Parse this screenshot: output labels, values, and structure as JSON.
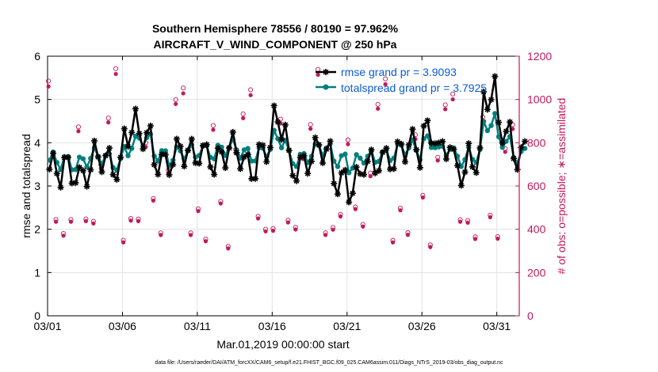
{
  "chart_data": {
    "type": "line",
    "title_line1": "Southern Hemisphere 78556 / 80190 = 97.962%",
    "title_line2": "AIRCRAFT_V_WIND_COMPONENT @ 250 hPa",
    "xlabel": "Mar.01,2019 00:00:00 start",
    "ylabel_left": "rmse and totalspread",
    "ylabel_right": "# of obs: o=possible; ∗=assimilated",
    "xlim": [
      0,
      31.5
    ],
    "ylim_left": [
      0,
      6
    ],
    "ylim_right": [
      0,
      1200
    ],
    "x_ticks": [
      {
        "x": 0,
        "label": "03/01"
      },
      {
        "x": 5,
        "label": "03/06"
      },
      {
        "x": 10,
        "label": "03/11"
      },
      {
        "x": 15,
        "label": "03/16"
      },
      {
        "x": 20,
        "label": "03/21"
      },
      {
        "x": 25,
        "label": "03/26"
      },
      {
        "x": 30,
        "label": "03/31"
      }
    ],
    "y_ticks_left": [
      "0",
      "1",
      "2",
      "3",
      "4",
      "5",
      "6"
    ],
    "y_ticks_right": [
      "0",
      "200",
      "400",
      "600",
      "800",
      "1000",
      "1200"
    ],
    "colors": {
      "rmse": "#000000",
      "spread": "#00807F",
      "obs": "#C2185B",
      "legend_text": "#0A5BD6",
      "grid": "#E3E3E3"
    },
    "legend": {
      "rmse_label": "rmse grand pr = 3.9093",
      "spread_label": "totalspread grand pr = 3.7925"
    },
    "rmse_daily_centers": [
      3.2,
      3.5,
      3.3,
      3.5,
      3.6,
      4.3,
      4.0,
      3.7,
      3.7,
      3.6,
      3.9,
      3.6,
      3.7,
      3.6,
      3.8,
      4.3,
      3.6,
      3.6,
      3.7,
      3.3,
      3.0,
      3.4,
      3.8,
      3.7,
      3.8,
      4.4,
      3.8,
      3.3,
      3.8,
      5.0,
      4.2,
      3.9
    ],
    "spread_daily_centers": [
      3.5,
      3.6,
      3.6,
      3.6,
      3.6,
      3.9,
      4.0,
      3.8,
      3.7,
      3.7,
      3.9,
      3.8,
      3.8,
      3.8,
      3.8,
      4.0,
      3.7,
      3.7,
      3.8,
      3.7,
      3.5,
      3.6,
      3.8,
      3.8,
      3.8,
      4.1,
      3.8,
      3.6,
      3.8,
      4.4,
      4.0,
      3.8
    ],
    "obs_pattern_possible": [
      1085,
      400,
      440,
      410,
      860,
      500,
      380,
      720,
      940
    ],
    "obs_pattern_assimilated": [
      1060,
      390,
      430,
      400,
      840,
      490,
      370,
      705,
      920
    ]
  },
  "footer": {
    "data_file": "data file: /Users/raeder/DAI/ATM_forcXX/CAM6_setup/f.e21.FHIST_BGC.f09_025.CAM6assim.011/Diags_NTrS_2019-03/obs_diag_output.nc"
  }
}
